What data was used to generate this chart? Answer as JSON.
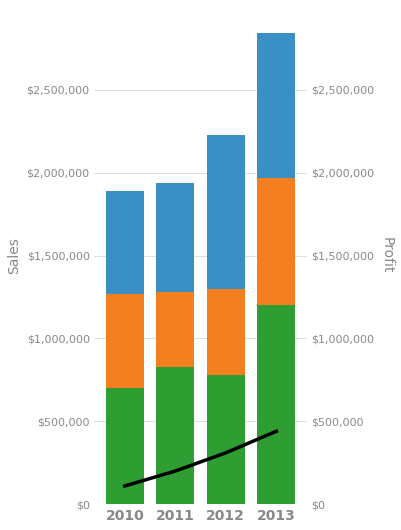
{
  "years": [
    "2010",
    "2011",
    "2012",
    "2013"
  ],
  "green_values": [
    700000,
    830000,
    780000,
    1200000
  ],
  "orange_values": [
    570000,
    450000,
    520000,
    770000
  ],
  "blue_values": [
    620000,
    660000,
    930000,
    870000
  ],
  "line_x": [
    0,
    1,
    2,
    3
  ],
  "line_y": [
    110000,
    200000,
    310000,
    440000
  ],
  "colors": {
    "green": "#2e9e32",
    "orange": "#f47f20",
    "blue": "#3a8fc4",
    "line": "#000000",
    "background": "#ffffff",
    "axis_text": "#888888"
  },
  "ylabel_left": "Sales",
  "ylabel_right": "Profit",
  "ylim": [
    0,
    3000000
  ],
  "yticks": [
    0,
    500000,
    1000000,
    1500000,
    2000000,
    2500000
  ],
  "bar_width": 0.75,
  "figsize": [
    4.01,
    5.3
  ],
  "dpi": 100
}
